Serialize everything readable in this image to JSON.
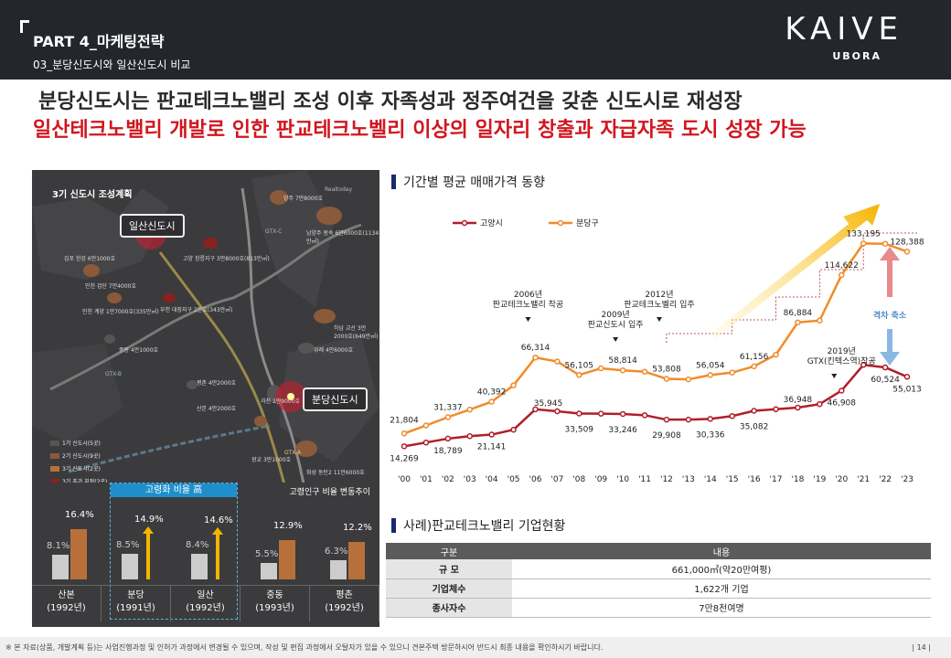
{
  "header": {
    "part": "PART 4_마케팅전략",
    "subtitle": "03_분당신도시와 일산신도시 비교",
    "logo": "KAIVE",
    "logo_sub": "UBORA"
  },
  "headline": {
    "line1": "분당신도시는 판교테크노밸리 조성 이후 자족성과 정주여건을 갖춘 신도시로 재성장",
    "line2": "일산테크노밸리 개발로 인한 판교테크노벨리 이상의 일자리 창출과 자급자족 도시 성장 가능"
  },
  "map": {
    "title": "3기 신도시 조성계획",
    "callout_ilsan": "일산신도시",
    "callout_bundang": "분당신도시",
    "watermark": "Realtoday",
    "labels": [
      "양주 7만8000호",
      "남양주 왕숙 6만6000호(1134만㎡)",
      "고양 창릉지구 3만8000호(813만㎡)",
      "김포 한강 6만1000호",
      "인천 검단 7만4000호",
      "인천 계양 1만7000호(335만㎡)",
      "부천 대장지구 2만호(343만㎡)",
      "하남 교산 3만2000호(649만㎡)",
      "위례 4만6000호",
      "평촌 4만2000호",
      "과천 1만9000호",
      "광교 3만1000호",
      "화성 동탄2 11만6000호",
      "GTX-A",
      "GTX-B",
      "GTX-C",
      "산본 4만2000호",
      "중동 4만1000호"
    ],
    "legend": [
      "1기 신도시(5곳)",
      "2기 신도시(9곳)",
      "3기 신도시(2곳)",
      "3기 추가 지정(2곳)"
    ],
    "legend_colors": [
      "#555555",
      "#8a5a3a",
      "#b8703a",
      "#8a2020"
    ]
  },
  "aging": {
    "highlight_label": "고령화 비율 高",
    "title": "고령인구 비율 변동추이",
    "cities": [
      {
        "name": "산본",
        "year": "(1992년)",
        "before": "8.1%",
        "after": "16.4%"
      },
      {
        "name": "분당",
        "year": "(1991년)",
        "before": "8.5%",
        "after": "14.9%"
      },
      {
        "name": "일산",
        "year": "(1992년)",
        "before": "8.4%",
        "after": "14.6%"
      },
      {
        "name": "중동",
        "year": "(1993년)",
        "before": "5.5%",
        "after": "12.9%"
      },
      {
        "name": "평촌",
        "year": "(1992년)",
        "before": "6.3%",
        "after": "12.2%"
      }
    ],
    "before_values": [
      8.1,
      8.5,
      8.4,
      5.5,
      6.3
    ],
    "after_values": [
      16.4,
      14.9,
      14.6,
      12.9,
      12.2
    ]
  },
  "price_section": {
    "title": "기간별 평균 매매가격 동향",
    "gap_label": "격차 축소"
  },
  "chart_data": {
    "type": "line",
    "title": "기간별 평균 매매가격 동향",
    "categories": [
      "'00",
      "'01",
      "'02",
      "'03",
      "'04",
      "'05",
      "'06",
      "'07",
      "'08",
      "'09",
      "'10",
      "'11",
      "'12",
      "'13",
      "'14",
      "'15",
      "'16",
      "'17",
      "'18",
      "'19",
      "'20",
      "'21",
      "'22",
      "'23"
    ],
    "series": [
      {
        "name": "고양시",
        "color": "#b01e2a",
        "values": [
          14269,
          16500,
          18789,
          20200,
          21141,
          24000,
          35945,
          34800,
          33509,
          33400,
          33246,
          32500,
          29908,
          29900,
          30336,
          32000,
          35082,
          36000,
          36948,
          39000,
          46908,
          62000,
          60524,
          55013
        ]
      },
      {
        "name": "분당구",
        "color": "#f08c2a",
        "values": [
          21804,
          26500,
          31337,
          35800,
          40392,
          50000,
          66314,
          64000,
          56105,
          60000,
          58814,
          58000,
          53808,
          53500,
          56054,
          57500,
          61156,
          68000,
          86884,
          88000,
          114622,
          133195,
          133000,
          128388
        ]
      }
    ],
    "data_labels": [
      {
        "series": "고양시",
        "idx": 0,
        "text": "14,269"
      },
      {
        "series": "고양시",
        "idx": 2,
        "text": "18,789"
      },
      {
        "series": "고양시",
        "idx": 4,
        "text": "21,141"
      },
      {
        "series": "고양시",
        "idx": 6,
        "text": "35,945"
      },
      {
        "series": "고양시",
        "idx": 8,
        "text": "33,509"
      },
      {
        "series": "고양시",
        "idx": 10,
        "text": "33,246"
      },
      {
        "series": "고양시",
        "idx": 12,
        "text": "29,908"
      },
      {
        "series": "고양시",
        "idx": 14,
        "text": "30,336"
      },
      {
        "series": "고양시",
        "idx": 16,
        "text": "35,082"
      },
      {
        "series": "고양시",
        "idx": 18,
        "text": "36,948"
      },
      {
        "series": "고양시",
        "idx": 20,
        "text": "46,908"
      },
      {
        "series": "고양시",
        "idx": 22,
        "text": "60,524"
      },
      {
        "series": "고양시",
        "idx": 23,
        "text": "55,013"
      },
      {
        "series": "분당구",
        "idx": 0,
        "text": "21,804"
      },
      {
        "series": "분당구",
        "idx": 2,
        "text": "31,337"
      },
      {
        "series": "분당구",
        "idx": 4,
        "text": "40,392"
      },
      {
        "series": "분당구",
        "idx": 6,
        "text": "66,314"
      },
      {
        "series": "분당구",
        "idx": 8,
        "text": "56,105"
      },
      {
        "series": "분당구",
        "idx": 10,
        "text": "58,814"
      },
      {
        "series": "분당구",
        "idx": 12,
        "text": "53,808"
      },
      {
        "series": "분당구",
        "idx": 14,
        "text": "56,054"
      },
      {
        "series": "분당구",
        "idx": 16,
        "text": "61,156"
      },
      {
        "series": "분당구",
        "idx": 18,
        "text": "86,884"
      },
      {
        "series": "분당구",
        "idx": 20,
        "text": "114,622"
      },
      {
        "series": "분당구",
        "idx": 21,
        "text": "133,195"
      },
      {
        "series": "분당구",
        "idx": 23,
        "text": "128,388"
      }
    ],
    "annotations": [
      {
        "idx": 6,
        "lines": [
          "2006년",
          "판교테크노밸리 착공"
        ]
      },
      {
        "idx": 10,
        "lines": [
          "2009년",
          "판교신도시 입주"
        ]
      },
      {
        "idx": 12,
        "lines": [
          "2012년",
          "판교테크노벨리 입주"
        ]
      },
      {
        "idx": 20,
        "lines": [
          "2019년",
          "GTX(킨텍스역)착공"
        ]
      }
    ],
    "ylim": [
      0,
      150000
    ]
  },
  "corp_section": {
    "title": "사례)판교테크노밸리 기업현황",
    "headers": [
      "구분",
      "내용"
    ],
    "rows": [
      {
        "key": "규      모",
        "value": "661,000㎡(약20만여평)"
      },
      {
        "key": "기업체수",
        "value": "1,622개 기업"
      },
      {
        "key": "종사자수",
        "value": "7만8천여명"
      }
    ]
  },
  "footer": {
    "note": "※ 본 자료(상품, 개발계획 등)는 사업진행과정 및 인허가 과정에서 변경될 수 있으며, 작성 및 편집 과정에서 오탈자가 있을 수 있으니 견본주택 방문하시어 반드시 최종 내용을 확인하시기 바랍니다.",
    "page": "| 14 |"
  }
}
